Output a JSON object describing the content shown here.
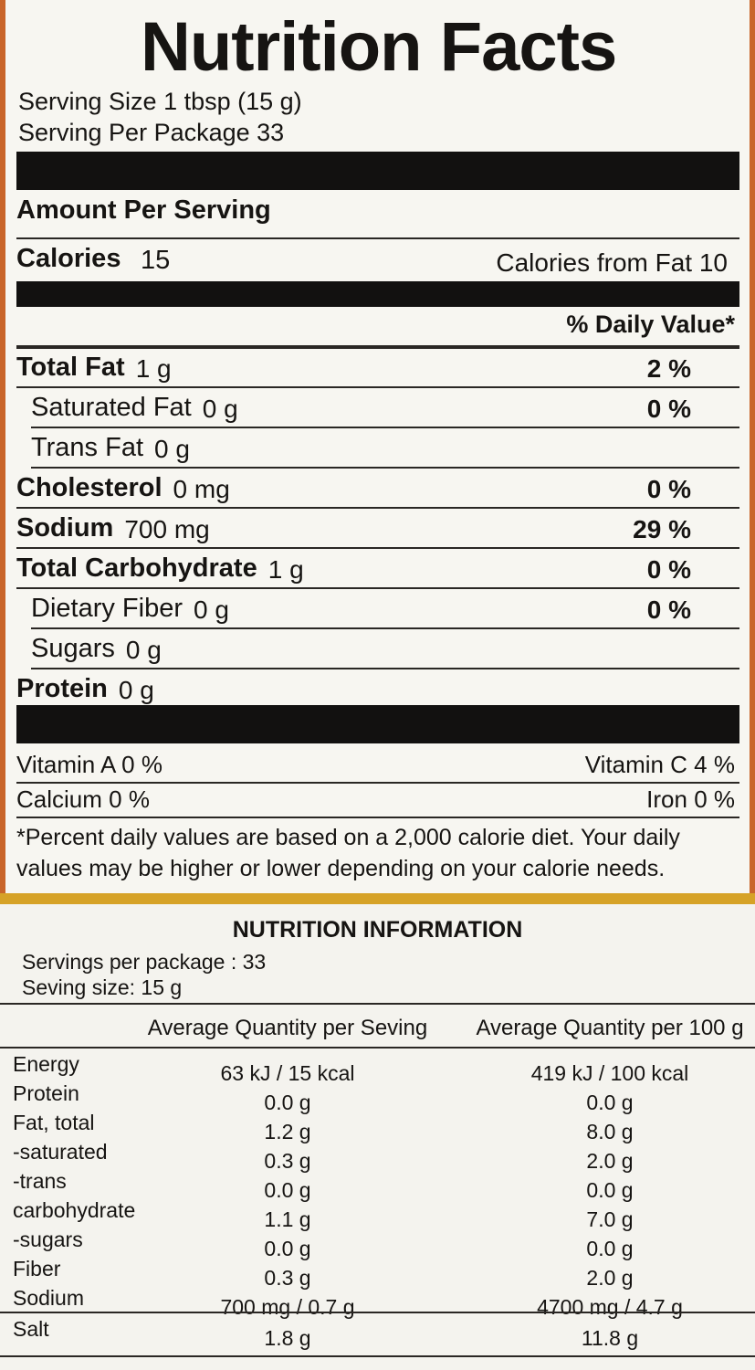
{
  "nutrition_facts": {
    "title": "Nutrition Facts",
    "serving_size": "Serving Size  1 tbsp (15 g)",
    "servings_per_package": "Serving Per Package  33",
    "amount_per_serving": "Amount Per Serving",
    "calories": {
      "label": "Calories",
      "value": "15"
    },
    "calories_from_fat": "Calories from Fat  10",
    "daily_value_header": "% Daily Value*",
    "nutrients": [
      {
        "name": "Total Fat",
        "amount": "1 g",
        "dv": "2 %",
        "sub": [
          {
            "name": "Saturated Fat",
            "amount": "0 g",
            "dv": "0 %"
          },
          {
            "name": "Trans Fat",
            "amount": "0 g"
          }
        ]
      },
      {
        "name": "Cholesterol",
        "amount": "0 mg",
        "dv": "0 %"
      },
      {
        "name": "Sodium",
        "amount": "700 mg",
        "dv": "29 %"
      },
      {
        "name": "Total Carbohydrate",
        "amount": "1 g",
        "dv": "0 %",
        "sub": [
          {
            "name": "Dietary Fiber",
            "amount": "0 g",
            "dv": "0 %"
          },
          {
            "name": "Sugars",
            "amount": "0 g"
          }
        ]
      },
      {
        "name": "Protein",
        "amount": "0 g"
      }
    ],
    "vitamins": [
      [
        "Vitamin A 0 %",
        "Vitamin C 4 %"
      ],
      [
        "Calcium 0 %",
        "Iron 0 %"
      ]
    ],
    "footnote": "*Percent daily values are based on a 2,000 calorie diet. Your daily values may be higher or lower depending on  your calorie needs."
  },
  "nutrition_information": {
    "title": "NUTRITION INFORMATION",
    "servings_per_package": "Servings per package : 33",
    "serving_size": "Seving size: 15 g",
    "columns": [
      "Average Quantity per Seving",
      "Average Quantity per 100 g"
    ],
    "rows": [
      [
        "Energy",
        "63 kJ / 15 kcal",
        "419 kJ / 100 kcal"
      ],
      [
        "Protein",
        "0.0 g",
        "0.0 g"
      ],
      [
        "Fat, total",
        "1.2 g",
        "8.0 g"
      ],
      [
        "-saturated",
        "0.3 g",
        "2.0 g"
      ],
      [
        "-trans",
        "0.0 g",
        "0.0 g"
      ],
      [
        "carbohydrate",
        "1.1 g",
        "7.0 g"
      ],
      [
        "-sugars",
        "0.0 g",
        "0.0 g"
      ],
      [
        "Fiber",
        "0.3 g",
        "2.0 g"
      ],
      [
        "Sodium",
        "700 mg / 0.7 g",
        "4700 mg / 4.7 g"
      ]
    ],
    "salt_row": [
      "Salt",
      "1.8 g",
      "11.8 g"
    ]
  }
}
